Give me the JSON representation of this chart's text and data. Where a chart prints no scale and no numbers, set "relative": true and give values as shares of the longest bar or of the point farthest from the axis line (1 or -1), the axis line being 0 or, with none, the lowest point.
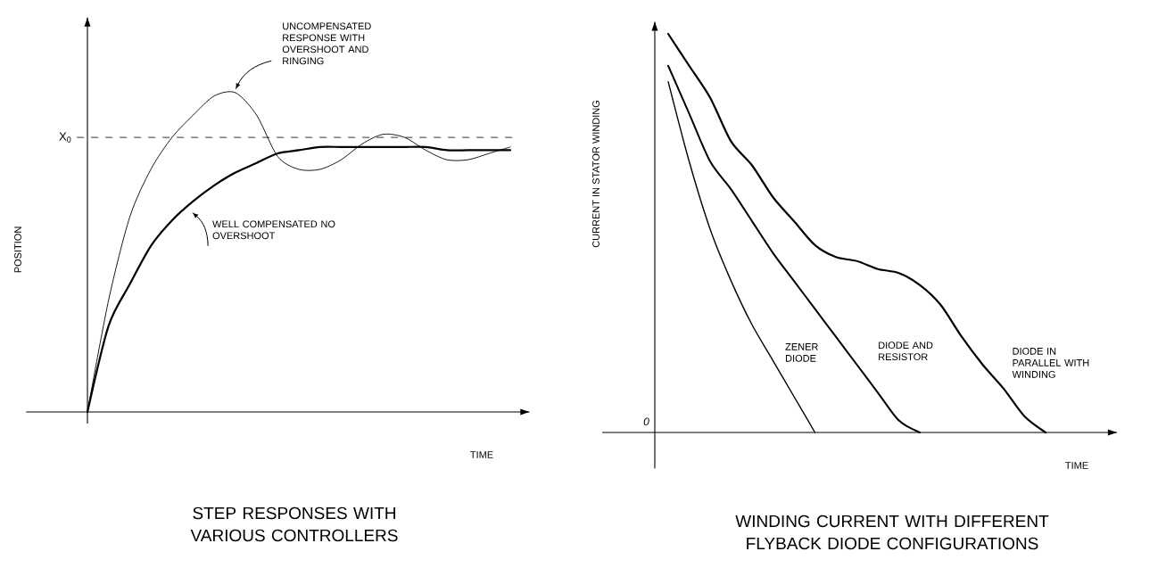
{
  "chart_data": [
    {
      "type": "line",
      "title": "STEP RESPONSES WITH VARIOUS CONTROLLERS",
      "xlabel": "TIME",
      "ylabel": "POSITION",
      "relative": true,
      "categories": [
        null,
        null,
        null,
        null,
        null,
        null,
        null,
        null,
        null,
        null,
        null,
        null,
        null,
        null,
        null,
        null,
        null,
        null,
        null,
        null,
        null
      ],
      "series": [
        {
          "name": "UNCOMPENSATED RESPONSE WITH OVERSHOOT AND RINGING",
          "color": "#000000",
          "values": [
            0,
            0.35,
            0.61,
            0.76,
            0.86,
            0.93,
            0.99,
            1.0,
            0.93,
            0.8,
            0.76,
            0.76,
            0.79,
            0.84,
            0.87,
            0.86,
            0.82,
            0.79,
            0.79,
            0.81,
            0.83
          ]
        },
        {
          "name": "WELL COMPENSATED NO OVERSHOOT",
          "color": "#000000",
          "values": [
            0,
            0.27,
            0.4,
            0.52,
            0.6,
            0.66,
            0.71,
            0.75,
            0.78,
            0.81,
            0.82,
            0.83,
            0.83,
            0.83,
            0.83,
            0.83,
            0.83,
            0.82,
            0.82,
            0.82,
            0.82
          ]
        }
      ],
      "ref_lines": [
        {
          "axis": "y",
          "value": 0.86,
          "label": "X$_{0}$",
          "line_style": "dashed"
        }
      ]
    },
    {
      "type": "line",
      "title": "WINDING CURRENT WITH DIFFERENT FLYBACK DIODE CONFIGURATIONS",
      "xlabel": "TIME",
      "ylabel": "CURRENT IN STATOR WINDING",
      "relative": true,
      "categories": [
        null,
        null,
        null,
        null,
        null,
        null,
        null,
        null,
        null,
        null,
        null,
        null,
        null,
        null,
        null,
        null,
        null,
        null,
        null,
        null
      ],
      "series": [
        {
          "name": "ZENER DIODE",
          "color": "#000000",
          "values": [
            0.88,
            0.68,
            0.51,
            0.38,
            0.27,
            0.18,
            0.09,
            0,
            null,
            null,
            null,
            null,
            null,
            null,
            null,
            null,
            null,
            null,
            null,
            null
          ]
        },
        {
          "name": "DIODE AND RESISTOR",
          "color": "#000000",
          "values": [
            0.92,
            0.8,
            0.68,
            0.61,
            0.53,
            0.45,
            0.38,
            0.31,
            0.24,
            0.17,
            0.1,
            0.03,
            0,
            null,
            null,
            null,
            null,
            null,
            null,
            null
          ]
        },
        {
          "name": "DIODE IN PARALLEL WITH WINDING",
          "color": "#000000",
          "values": [
            1.0,
            0.92,
            0.84,
            0.73,
            0.67,
            0.59,
            0.53,
            0.47,
            0.44,
            0.43,
            0.41,
            0.4,
            0.37,
            0.32,
            0.24,
            0.17,
            0.11,
            0.04,
            0,
            null
          ]
        }
      ],
      "annotations": [
        "0"
      ]
    }
  ]
}
